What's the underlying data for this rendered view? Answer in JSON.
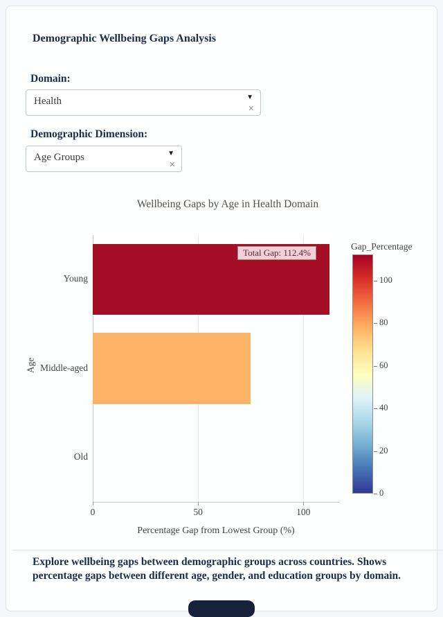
{
  "header": {
    "title": "Demographic Wellbeing Gaps Analysis"
  },
  "controls": {
    "domain": {
      "label": "Domain:",
      "value": "Health",
      "caret": "▼",
      "clear": "×"
    },
    "dimension": {
      "label": "Demographic Dimension:",
      "value": "Age Groups",
      "caret": "▼",
      "clear": "×"
    }
  },
  "chart_data": {
    "type": "bar",
    "orientation": "horizontal",
    "title": "Wellbeing Gaps by Age in Health Domain",
    "xlabel": "Percentage Gap from Lowest Group (%)",
    "ylabel": "Age",
    "categories": [
      "Young",
      "Middle-aged",
      "Old"
    ],
    "values": [
      112.4,
      75,
      0
    ],
    "bar_colors": [
      "#a50f26",
      "#fdb366",
      null
    ],
    "xticks": [
      0,
      50,
      100
    ],
    "xlim": [
      0,
      117
    ],
    "grid": "vertical",
    "legend": "none",
    "annotation": "Total Gap: 112.4%",
    "colorbar": {
      "title": "Gap_Percentage",
      "range": [
        0,
        112.4
      ],
      "ticks": [
        100,
        80,
        60,
        40,
        20,
        0
      ],
      "colors": [
        "#313695",
        "#4575b4",
        "#74add1",
        "#abd9e9",
        "#e0f3f8",
        "#ffffbf",
        "#fee090",
        "#fdae61",
        "#f46d43",
        "#d73027",
        "#a50026"
      ]
    }
  },
  "footer": {
    "text": "Explore wellbeing gaps between demographic groups across countries. Shows percentage gaps between different age, gender, and education groups by domain."
  }
}
